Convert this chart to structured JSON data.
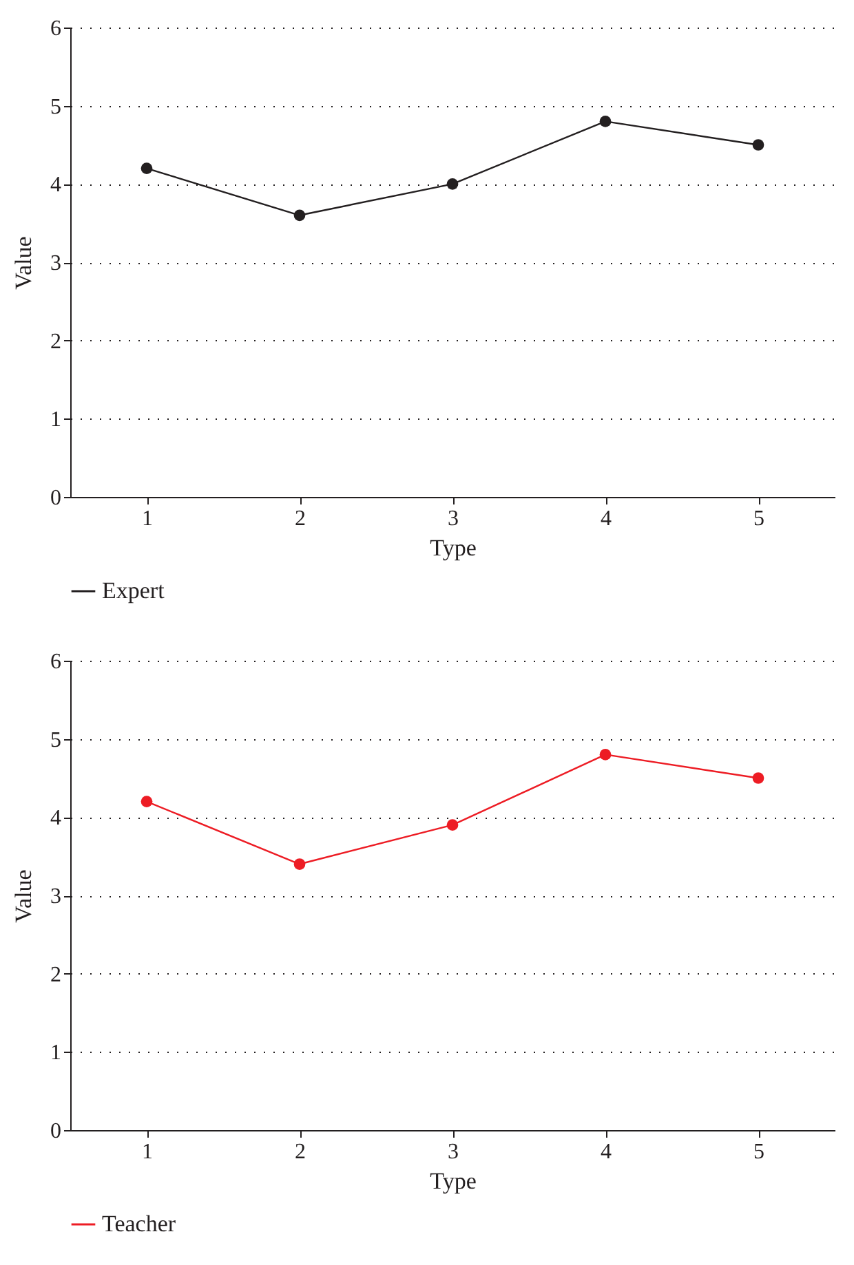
{
  "chart_data": [
    {
      "type": "line",
      "xlabel": "Type",
      "ylabel": "Value",
      "categories": [
        "1",
        "2",
        "3",
        "4",
        "5"
      ],
      "ylim": [
        0,
        6
      ],
      "yticks": [
        0,
        1,
        2,
        3,
        4,
        5,
        6
      ],
      "grid": "y",
      "legend": "bottom left",
      "marker": "circle",
      "line_style": "solid",
      "series": [
        {
          "name": "Expert",
          "color": "#231f20",
          "values": [
            4.2,
            3.6,
            4.0,
            4.8,
            4.5
          ]
        }
      ]
    },
    {
      "type": "line",
      "xlabel": "Type",
      "ylabel": "Value",
      "categories": [
        "1",
        "2",
        "3",
        "4",
        "5"
      ],
      "ylim": [
        0,
        6
      ],
      "yticks": [
        0,
        1,
        2,
        3,
        4,
        5,
        6
      ],
      "grid": "y",
      "legend": "bottom left",
      "marker": "circle",
      "line_style": "solid",
      "series": [
        {
          "name": "Teacher",
          "color": "#ed1c24",
          "values": [
            4.2,
            3.4,
            3.9,
            4.8,
            4.5
          ]
        }
      ]
    }
  ]
}
